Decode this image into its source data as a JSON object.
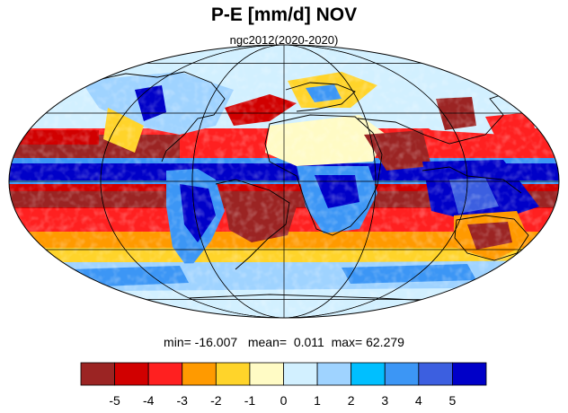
{
  "title": "P-E [mm/d] NOV",
  "subtitle": "ngc2012(2020-2020)",
  "stats": {
    "min_label": "min=",
    "min": "-16.007",
    "mean_label": "mean=",
    "mean": "0.011",
    "max_label": "max=",
    "max": "62.279"
  },
  "colorbar": {
    "colors": [
      "#9b2423",
      "#d10000",
      "#ff2020",
      "#ff9a00",
      "#ffd42a",
      "#fffbc5",
      "#d2f0ff",
      "#9fd3ff",
      "#00bfff",
      "#3c96f5",
      "#3c5fe0",
      "#0000c8"
    ],
    "tick_labels": [
      "-5",
      "-4",
      "-3",
      "-2",
      "-1",
      "0",
      "1",
      "2",
      "3",
      "4",
      "5"
    ]
  },
  "map_colors": {
    "ocean_base": "#d2f0ff",
    "graticule": "#000000",
    "coast": "#000000"
  }
}
